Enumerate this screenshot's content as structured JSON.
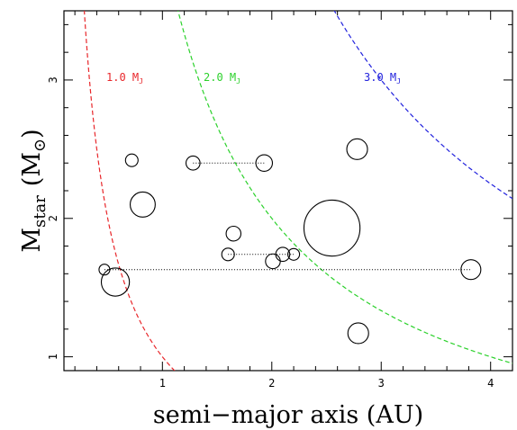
{
  "chart_data": {
    "type": "scatter",
    "xlabel": "semi−major axis (AU)",
    "ylabel_main": "M",
    "ylabel_sub": "star",
    "ylabel_unit_open": "(M",
    "ylabel_unit_sym": "⊙",
    "ylabel_unit_close": ")",
    "xlim": [
      0.1,
      4.2
    ],
    "ylim": [
      0.9,
      3.5
    ],
    "x_ticks": [
      1,
      2,
      3,
      4
    ],
    "y_ticks": [
      1,
      2,
      3
    ],
    "grid": false,
    "curves": [
      {
        "label": "1.0 M",
        "sub": "J",
        "mass": 1.0,
        "color": "#e8262a"
      },
      {
        "label": "2.0 M",
        "sub": "J",
        "mass": 2.0,
        "color": "#2bd12b"
      },
      {
        "label": "3.0 M",
        "sub": "J",
        "mass": 3.0,
        "color": "#2222dd"
      }
    ],
    "points": [
      {
        "x": 0.57,
        "y": 1.54,
        "size": 2
      },
      {
        "x": 0.47,
        "y": 1.63,
        "size": 0.3
      },
      {
        "x": 0.72,
        "y": 2.42,
        "size": 0.4
      },
      {
        "x": 0.82,
        "y": 2.1,
        "size": 1.6
      },
      {
        "x": 1.28,
        "y": 2.4,
        "size": 0.5
      },
      {
        "x": 1.93,
        "y": 2.4,
        "size": 0.7
      },
      {
        "x": 1.65,
        "y": 1.89,
        "size": 0.55
      },
      {
        "x": 1.6,
        "y": 1.74,
        "size": 0.4
      },
      {
        "x": 2.1,
        "y": 1.74,
        "size": 0.5
      },
      {
        "x": 2.2,
        "y": 1.74,
        "size": 0.35
      },
      {
        "x": 2.01,
        "y": 1.69,
        "size": 0.55
      },
      {
        "x": 2.55,
        "y": 1.93,
        "size": 8
      },
      {
        "x": 2.78,
        "y": 2.5,
        "size": 1.1
      },
      {
        "x": 2.79,
        "y": 1.17,
        "size": 1.1
      },
      {
        "x": 3.82,
        "y": 1.63,
        "size": 1.0
      }
    ],
    "connectors": [
      {
        "x1": 1.28,
        "x2": 1.93,
        "y": 2.4
      },
      {
        "x1": 1.6,
        "x2": 2.2,
        "y": 1.74
      },
      {
        "x1": 0.47,
        "x2": 3.82,
        "y": 1.63
      }
    ]
  }
}
